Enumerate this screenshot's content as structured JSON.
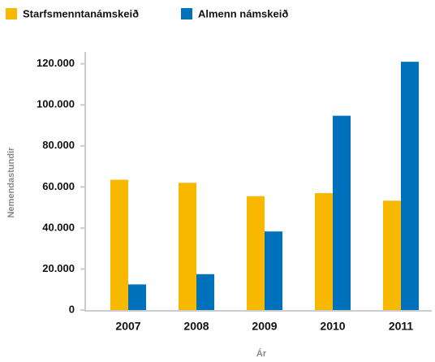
{
  "chart_data": {
    "type": "bar",
    "categories": [
      "2007",
      "2008",
      "2009",
      "2010",
      "2011"
    ],
    "series": [
      {
        "name": "Starfsmenntanámskeið",
        "color": "#f9b800",
        "values": [
          63500,
          62000,
          55500,
          57000,
          53300
        ]
      },
      {
        "name": "Almenn námskeið",
        "color": "#0072bc",
        "values": [
          12500,
          17500,
          38300,
          94700,
          121000
        ]
      }
    ],
    "xlabel": "Ár",
    "ylabel": "Nemendastundir",
    "ylim": [
      0,
      125000
    ],
    "yticks": [
      0,
      {
        "value": 20000,
        "label": "20.000"
      },
      {
        "value": 40000,
        "label": "40.000"
      },
      {
        "value": 60000,
        "label": "60.000"
      },
      {
        "value": 80000,
        "label": "80.000"
      },
      {
        "value": 100000,
        "label": "100.000"
      },
      {
        "value": 120000,
        "label": "120.000"
      }
    ],
    "grid": false,
    "legend": "top-left"
  }
}
